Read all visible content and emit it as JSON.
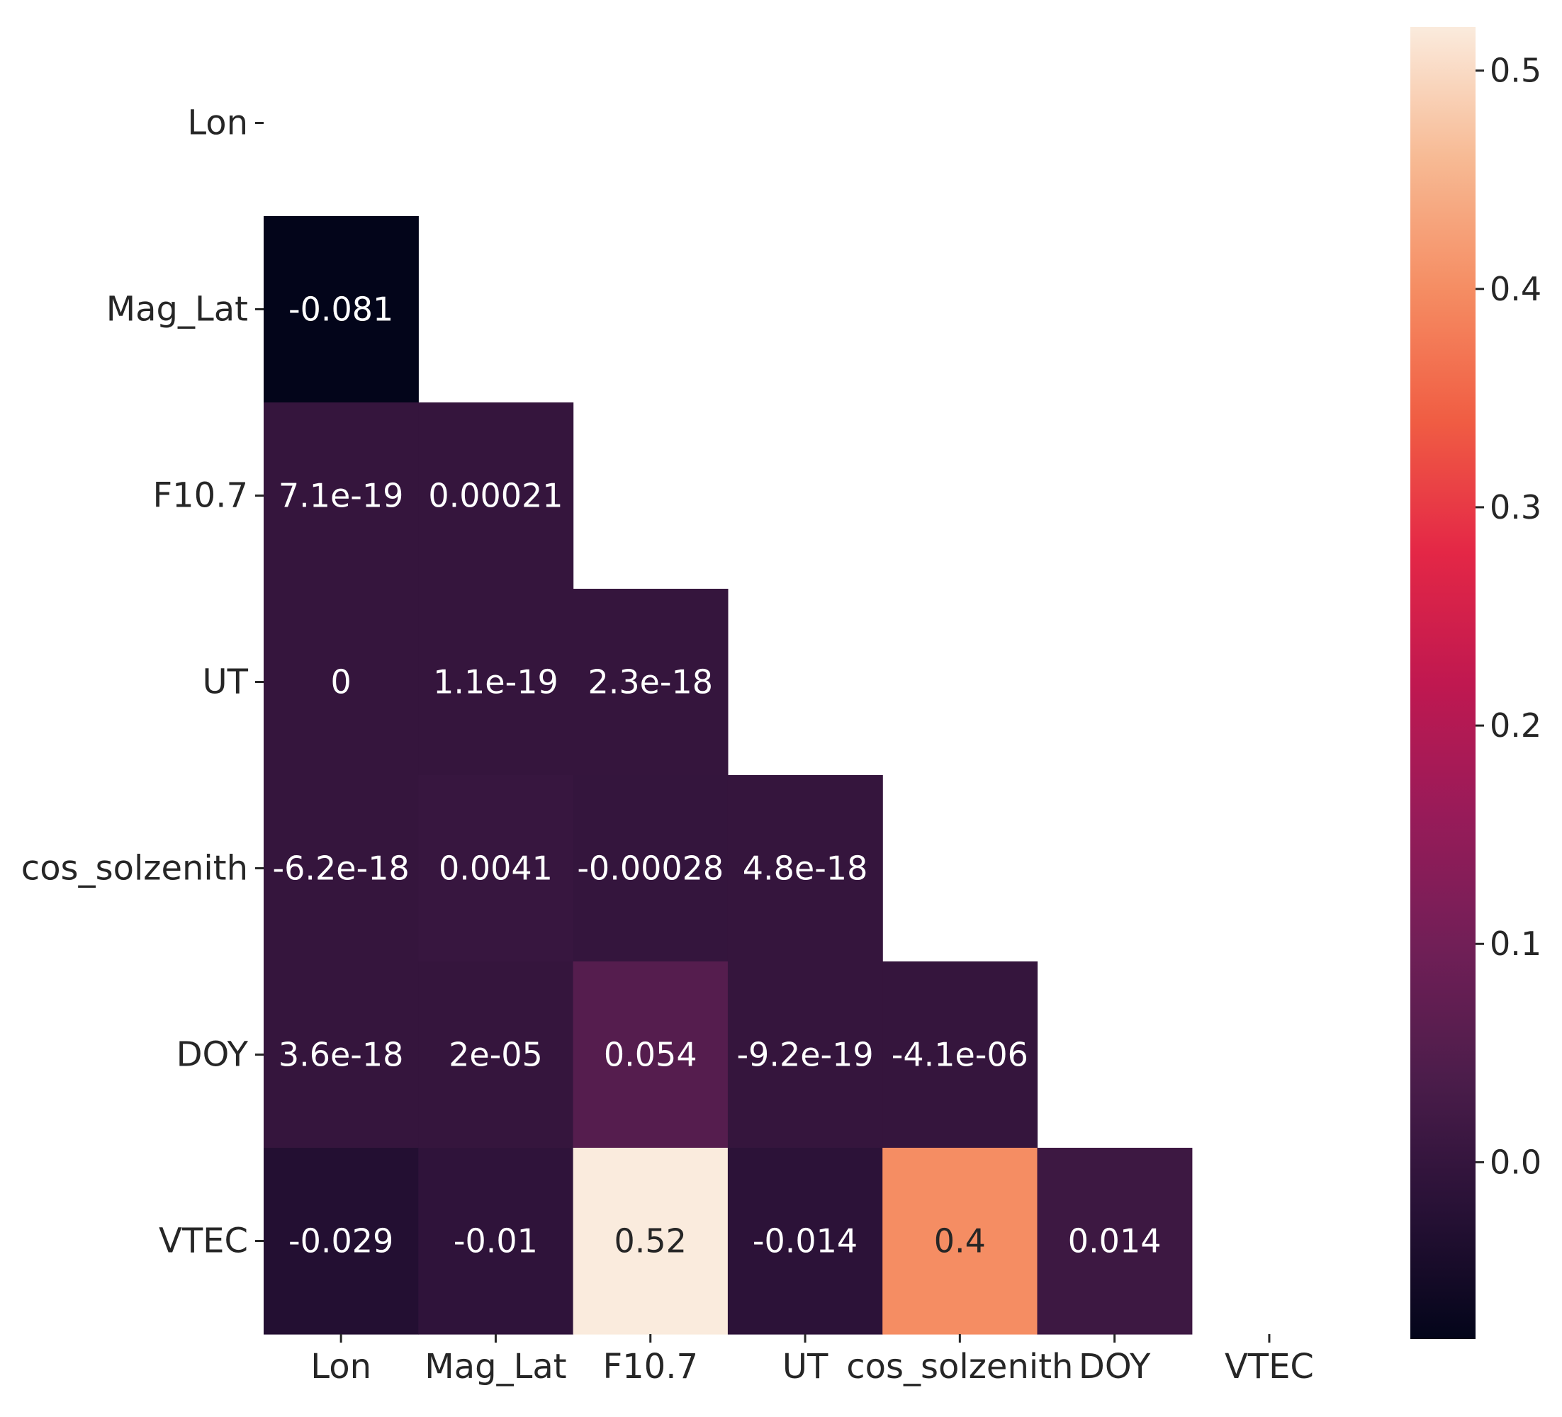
{
  "chart_data": {
    "type": "heatmap",
    "title": "",
    "xlabel": "",
    "ylabel": "",
    "variables": [
      "Lon",
      "Mag_Lat",
      "F10.7",
      "UT",
      "cos_solzenith",
      "DOY",
      "VTEC"
    ],
    "mask": "upper-triangle-and-diagonal",
    "cells": [
      {
        "row": "Mag_Lat",
        "col": "Lon",
        "value": -0.081,
        "label": "-0.081"
      },
      {
        "row": "F10.7",
        "col": "Lon",
        "value": 7.1e-19,
        "label": "7.1e-19"
      },
      {
        "row": "F10.7",
        "col": "Mag_Lat",
        "value": 0.00021,
        "label": "0.00021"
      },
      {
        "row": "UT",
        "col": "Lon",
        "value": 0,
        "label": "0"
      },
      {
        "row": "UT",
        "col": "Mag_Lat",
        "value": 1.1e-19,
        "label": "1.1e-19"
      },
      {
        "row": "UT",
        "col": "F10.7",
        "value": 2.3e-18,
        "label": "2.3e-18"
      },
      {
        "row": "cos_solzenith",
        "col": "Lon",
        "value": -6.2e-18,
        "label": "-6.2e-18"
      },
      {
        "row": "cos_solzenith",
        "col": "Mag_Lat",
        "value": 0.0041,
        "label": "0.0041"
      },
      {
        "row": "cos_solzenith",
        "col": "F10.7",
        "value": -0.00028,
        "label": "-0.00028"
      },
      {
        "row": "cos_solzenith",
        "col": "UT",
        "value": 4.8e-18,
        "label": "4.8e-18"
      },
      {
        "row": "DOY",
        "col": "Lon",
        "value": 3.6e-18,
        "label": "3.6e-18"
      },
      {
        "row": "DOY",
        "col": "Mag_Lat",
        "value": 2e-05,
        "label": "2e-05"
      },
      {
        "row": "DOY",
        "col": "F10.7",
        "value": 0.054,
        "label": "0.054"
      },
      {
        "row": "DOY",
        "col": "UT",
        "value": -9.2e-19,
        "label": "-9.2e-19"
      },
      {
        "row": "DOY",
        "col": "cos_solzenith",
        "value": -4.1e-06,
        "label": "-4.1e-06"
      },
      {
        "row": "VTEC",
        "col": "Lon",
        "value": -0.029,
        "label": "-0.029"
      },
      {
        "row": "VTEC",
        "col": "Mag_Lat",
        "value": -0.01,
        "label": "-0.01"
      },
      {
        "row": "VTEC",
        "col": "F10.7",
        "value": 0.52,
        "label": "0.52"
      },
      {
        "row": "VTEC",
        "col": "UT",
        "value": -0.014,
        "label": "-0.014"
      },
      {
        "row": "VTEC",
        "col": "cos_solzenith",
        "value": 0.4,
        "label": "0.4"
      },
      {
        "row": "VTEC",
        "col": "DOY",
        "value": 0.014,
        "label": "0.014"
      }
    ],
    "colorbar": {
      "colormap": "rocket",
      "vmin": -0.081,
      "vmax": 0.52,
      "ticks": [
        0.0,
        0.1,
        0.2,
        0.3,
        0.4,
        0.5
      ],
      "tick_labels": [
        "0.0",
        "0.1",
        "0.2",
        "0.3",
        "0.4",
        "0.5"
      ]
    },
    "grid": false,
    "legend": "none"
  }
}
